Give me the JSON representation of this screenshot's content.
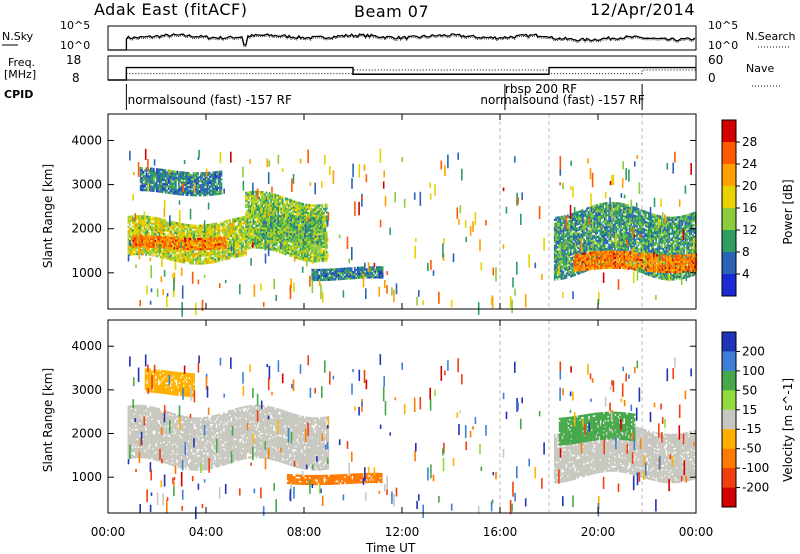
{
  "header": {
    "left": "Adak East (fitACF)",
    "center": "Beam 07",
    "right": "12/Apr/2014"
  },
  "labels": {
    "nsky": "N.Sky",
    "nsearch": "N.Search",
    "freq": "Freq.",
    "freq_unit": "[MHz]",
    "nave": "Nave",
    "cpid": "CPID",
    "xlabel": "Time UT",
    "ylabel": "Slant Range [km]"
  },
  "noise_panel": {
    "left_ticks": [
      "10^5",
      "10^0"
    ],
    "right_ticks": [
      "10^5",
      "10^0"
    ]
  },
  "freq_panel": {
    "left_ticks": [
      "18",
      "8"
    ],
    "right_ticks": [
      "60",
      "0"
    ],
    "freq_steps": [
      {
        "t0": 0.75,
        "t1": 5.6,
        "f": 13.2
      },
      {
        "t0": 5.6,
        "t1": 10.0,
        "f": 13.2
      },
      {
        "t0": 10.0,
        "t1": 18.0,
        "f": 10.4
      },
      {
        "t0": 18.0,
        "t1": 24.0,
        "f": 13.2
      }
    ],
    "nave_steps": [
      {
        "t0": 0.75,
        "t1": 10.0,
        "n": 16
      },
      {
        "t0": 10.0,
        "t1": 18.0,
        "n": 25
      },
      {
        "t0": 18.0,
        "t1": 21.8,
        "n": 16
      },
      {
        "t0": 21.8,
        "t1": 24.0,
        "n": 25
      }
    ]
  },
  "cpid_labels": [
    {
      "t": 0.8,
      "text": "normalsound (fast) -157 RF"
    },
    {
      "t": 16.2,
      "text": "rbsp 200 RF"
    },
    {
      "t": 15.2,
      "text": "normalsound (fast) -157 RF"
    }
  ],
  "power_colorbar": {
    "title": "Power [dB]",
    "ticks": [
      "28",
      "24",
      "20",
      "16",
      "12",
      "8",
      "4"
    ],
    "colors": [
      "#d40000",
      "#ff5a00",
      "#ff9f00",
      "#e8d200",
      "#8ccc3a",
      "#2e9d62",
      "#2a63b8",
      "#1a2bd6"
    ]
  },
  "velocity_colorbar": {
    "title": "Velocity [m s^-1]",
    "ticks": [
      "200",
      "100",
      "50",
      "15",
      "-15",
      "-50",
      "-100",
      "-200"
    ],
    "colors": [
      "#1f33b6",
      "#3f7fd6",
      "#46a84a",
      "#8fdc3c",
      "#c8c8c0",
      "#ffb000",
      "#ff7a00",
      "#f04010",
      "#d40000"
    ]
  },
  "chart_data": {
    "type": "heatmap",
    "x_ticks": [
      "00:00",
      "04:00",
      "08:00",
      "12:00",
      "16:00",
      "20:00",
      "00:00"
    ],
    "xlim_hours": [
      0,
      24
    ],
    "y_ticks": [
      "1000",
      "2000",
      "3000",
      "4000"
    ],
    "ylim_km": [
      180,
      4600
    ],
    "power_bands": [
      {
        "t0": 0.8,
        "t1": 5.6,
        "r0": 1300,
        "r1": 2200,
        "db": 16
      },
      {
        "t0": 5.6,
        "t1": 8.9,
        "r0": 1400,
        "r1": 2700,
        "db": 14
      },
      {
        "t0": 1.0,
        "t1": 4.8,
        "r0": 1550,
        "r1": 1800,
        "db": 24
      },
      {
        "t0": 6.2,
        "t1": 8.7,
        "r0": 1700,
        "r1": 2300,
        "db": 12
      },
      {
        "t0": 1.3,
        "t1": 4.6,
        "r0": 2800,
        "r1": 3300,
        "db": 8
      },
      {
        "t0": 8.3,
        "t1": 11.2,
        "r0": 850,
        "r1": 1100,
        "db": 8
      },
      {
        "t0": 18.2,
        "t1": 24.0,
        "r0": 1000,
        "r1": 2400,
        "db": 10
      },
      {
        "t0": 19.0,
        "t1": 24.0,
        "r0": 1050,
        "r1": 1450,
        "db": 24
      }
    ],
    "velocity_bands": [
      {
        "t0": 0.8,
        "t1": 9.0,
        "r0": 1300,
        "r1": 2500,
        "v": 0
      },
      {
        "t0": 7.3,
        "t1": 11.2,
        "r0": 850,
        "r1": 1050,
        "v": -60
      },
      {
        "t0": 1.5,
        "t1": 3.5,
        "r0": 2900,
        "r1": 3400,
        "v": -30
      },
      {
        "t0": 18.2,
        "t1": 24.0,
        "r0": 1000,
        "r1": 2100,
        "v": 0
      },
      {
        "t0": 18.4,
        "t1": 21.5,
        "r0": 1800,
        "r1": 2400,
        "v": 40
      }
    ]
  }
}
